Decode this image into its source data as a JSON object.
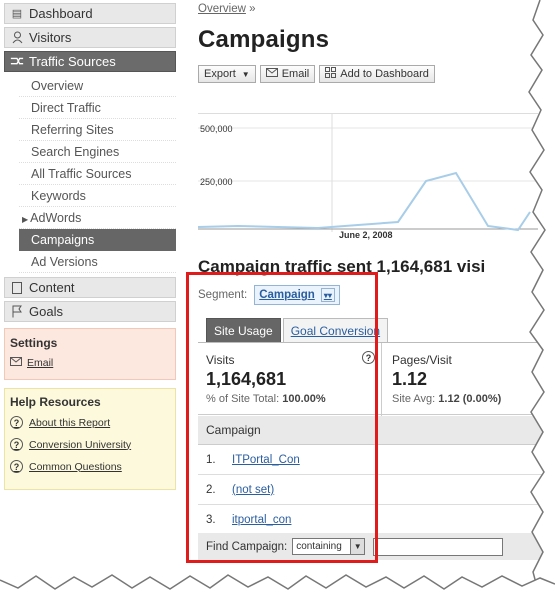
{
  "sidebar": {
    "main": [
      {
        "label": "Dashboard",
        "icon": "dashboard-icon"
      },
      {
        "label": "Visitors",
        "icon": "person-icon"
      },
      {
        "label": "Traffic Sources",
        "icon": "traffic-sources-icon"
      }
    ],
    "sub": [
      "Overview",
      "Direct Traffic",
      "Referring Sites",
      "Search Engines",
      "All Traffic Sources",
      "Keywords",
      "AdWords",
      "Campaigns",
      "Ad Versions"
    ],
    "main2": [
      {
        "label": "Content",
        "icon": "content-icon"
      },
      {
        "label": "Goals",
        "icon": "flag-icon"
      }
    ],
    "settings": {
      "title": "Settings",
      "email": "Email"
    },
    "help": {
      "title": "Help Resources",
      "links": [
        "About this Report",
        "Conversion University",
        "Common Questions"
      ]
    }
  },
  "main": {
    "breadcrumb": "Overview",
    "breadcrumb_sep": "»",
    "title": "Campaigns",
    "toolbar": {
      "export": "Export",
      "email": "Email",
      "dashboard": "Add to Dashboard"
    },
    "graph": {
      "y1": "500,000",
      "y2": "250,000",
      "date": "June 2, 2008"
    },
    "headline": "Campaign traffic sent 1,164,681 visi",
    "segment_label": "Segment:",
    "segment_value": "Campaign",
    "tabs": {
      "site_usage": "Site Usage",
      "goal_conversion": "Goal Conversion"
    },
    "visits": {
      "label": "Visits",
      "value": "1,164,681",
      "sub_label": "% of Site Total:",
      "sub_value": "100.00%"
    },
    "pages": {
      "label": "Pages/Visit",
      "value": "1.12",
      "sub_label": "Site Avg:",
      "sub_value": "1.12 (0.00%)"
    },
    "table": {
      "header": "Campaign",
      "rows": [
        {
          "num": "1.",
          "name": "ITPortal_Con"
        },
        {
          "num": "2.",
          "name": "(not set)"
        },
        {
          "num": "3.",
          "name": "itportal_con"
        }
      ]
    },
    "find": {
      "label": "Find Campaign:",
      "select": "containing"
    }
  },
  "colors": {
    "highlight": "#e01b1b",
    "link": "#2a5ea0",
    "active_nav": "#6b6b6b"
  }
}
